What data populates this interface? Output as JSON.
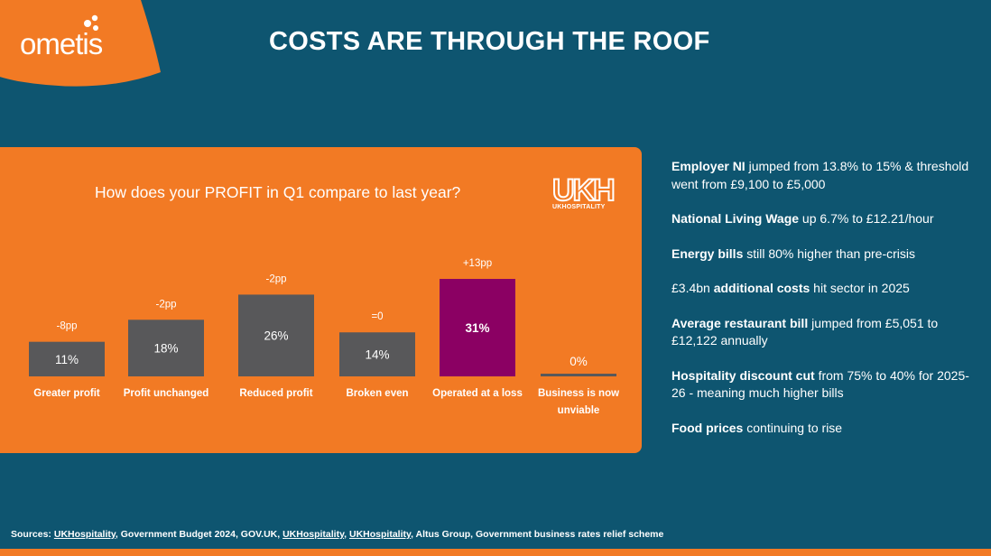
{
  "brand": {
    "logo_text": "ometis"
  },
  "title": "COSTS ARE THROUGH THE ROOF",
  "chart": {
    "question": "How does your PROFIT in Q1 compare to last year?",
    "badge": {
      "letters": "UKH",
      "sub": "UKHOSPITALITY"
    }
  },
  "chart_data": {
    "type": "bar",
    "title": "How does your PROFIT in Q1 compare to last year?",
    "categories": [
      "Greater profit",
      "Profit unchanged",
      "Reduced profit",
      "Broken even",
      "Operated at a loss",
      "Business is now unviable"
    ],
    "values": [
      11,
      18,
      26,
      14,
      31,
      0
    ],
    "value_labels": [
      "11%",
      "18%",
      "26%",
      "14%",
      "31%",
      "0%"
    ],
    "change_labels": [
      "-8pp",
      "-2pp",
      "-2pp",
      "=0",
      "+13pp",
      ""
    ],
    "ylim": [
      0,
      31
    ],
    "colors": {
      "default": "#58585a",
      "highlight": "#8b0063"
    },
    "highlight_index": 4,
    "xlabel": "",
    "ylabel": "",
    "grid": false
  },
  "notes": [
    {
      "bold": "Employer NI",
      "rest": " jumped from 13.8% to 15% & threshold went from £9,100 to £5,000",
      "pre": ""
    },
    {
      "bold": "National Living Wage",
      "rest": " up 6.7% to £12.21/hour",
      "pre": ""
    },
    {
      "bold": "Energy bills",
      "rest": " still 80% higher than pre-crisis",
      "pre": ""
    },
    {
      "pre": "£3.4bn ",
      "bold": "additional costs",
      "rest": " hit sector in 2025"
    },
    {
      "bold": "Average restaurant bill",
      "rest": " jumped from £5,051 to £12,122 annually",
      "pre": ""
    },
    {
      "bold": "Hospitality discount cut",
      "rest": " from 75% to 40% for 2025-26 - meaning much higher bills",
      "pre": ""
    },
    {
      "bold": "Food prices",
      "rest": " continuing to rise",
      "pre": ""
    }
  ],
  "sources": {
    "prefix": "Sources: ",
    "items": [
      {
        "text": "UKHospitality",
        "underline": true
      },
      {
        "text": ", Government Budget 2024, GOV.UK, ",
        "underline": false
      },
      {
        "text": "UKHospitality",
        "underline": true
      },
      {
        "text": ", ",
        "underline": false
      },
      {
        "text": "UKHospitality",
        "underline": true
      },
      {
        "text": ", Altus Group, Government business rates relief scheme",
        "underline": false
      }
    ]
  },
  "colors": {
    "background": "#0e5570",
    "accent": "#f27a24",
    "bar": "#58585a",
    "highlight": "#8b0063"
  }
}
